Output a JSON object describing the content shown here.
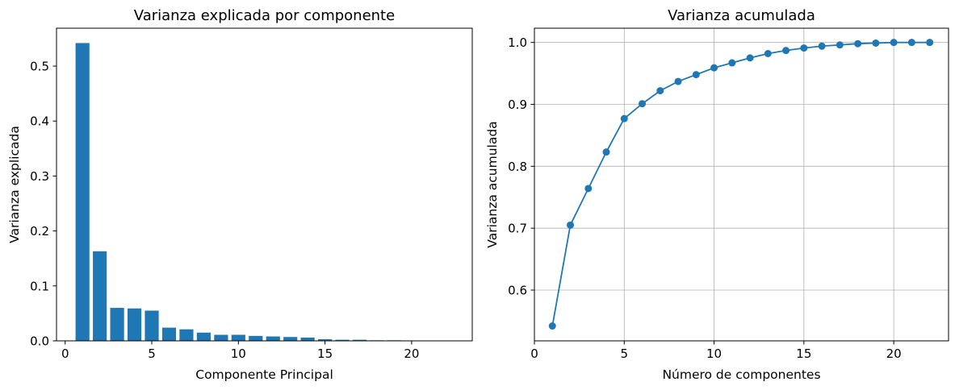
{
  "chart_data": [
    {
      "type": "bar",
      "title": "Varianza explicada por componente",
      "xlabel": "Componente Principal",
      "ylabel": "Varianza explicada",
      "xlim": [
        -0.5,
        23.5
      ],
      "ylim": [
        0,
        0.569
      ],
      "xticks": [
        0,
        5,
        10,
        15,
        20
      ],
      "yticks": [
        0.0,
        0.1,
        0.2,
        0.3,
        0.4,
        0.5
      ],
      "xtick_labels": [
        "0",
        "5",
        "10",
        "15",
        "20"
      ],
      "ytick_labels": [
        "0.0",
        "0.1",
        "0.2",
        "0.3",
        "0.4",
        "0.5"
      ],
      "grid": false,
      "color": "#1f77b4",
      "x": [
        1,
        2,
        3,
        4,
        5,
        6,
        7,
        8,
        9,
        10,
        11,
        12,
        13,
        14,
        15,
        16,
        17,
        18,
        19,
        20,
        21,
        22
      ],
      "values": [
        0.542,
        0.163,
        0.06,
        0.059,
        0.055,
        0.024,
        0.021,
        0.015,
        0.011,
        0.011,
        0.009,
        0.008,
        0.007,
        0.006,
        0.003,
        0.002,
        0.002,
        0.001,
        0.001,
        0.0005,
        0.0003,
        0.0002
      ]
    },
    {
      "type": "line",
      "title": "Varianza acumulada",
      "xlabel": "Número de componentes",
      "ylabel": "Varianza acumulada",
      "xlim": [
        0,
        23.05
      ],
      "ylim": [
        0.518,
        1.023
      ],
      "xticks": [
        0,
        5,
        10,
        15,
        20
      ],
      "yticks": [
        0.6,
        0.7,
        0.8,
        0.9,
        1.0
      ],
      "xtick_labels": [
        "0",
        "5",
        "10",
        "15",
        "20"
      ],
      "ytick_labels": [
        "0.6",
        "0.7",
        "0.8",
        "0.9",
        "1.0"
      ],
      "grid": true,
      "markers": true,
      "color": "#1f77b4",
      "x": [
        1,
        2,
        3,
        4,
        5,
        6,
        7,
        8,
        9,
        10,
        11,
        12,
        13,
        14,
        15,
        16,
        17,
        18,
        19,
        20,
        21,
        22
      ],
      "values": [
        0.542,
        0.705,
        0.764,
        0.823,
        0.877,
        0.901,
        0.922,
        0.937,
        0.948,
        0.959,
        0.967,
        0.975,
        0.982,
        0.987,
        0.991,
        0.994,
        0.996,
        0.998,
        0.999,
        1.0,
        1.0,
        1.0
      ]
    }
  ]
}
